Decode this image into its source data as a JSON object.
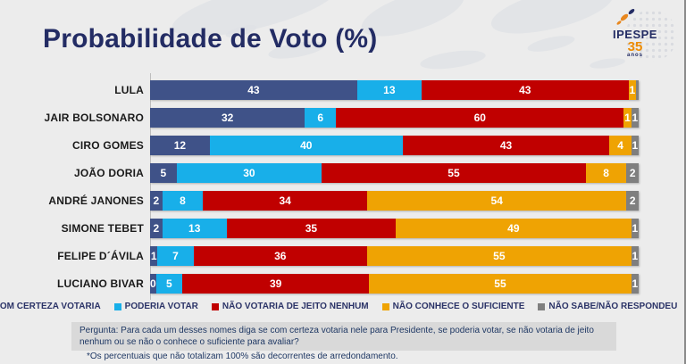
{
  "title": "Probabilidade de Voto (%)",
  "logo": {
    "name": "IPESPE",
    "years": "35",
    "anos": "anos"
  },
  "colors": {
    "background": "#ECECEC",
    "title": "#232C64",
    "com_certeza": "#3F5288",
    "poderia": "#18AFE9",
    "nao_votaria": "#C00000",
    "nao_conhece": "#EFA303",
    "nao_sabe": "#7F7F7F",
    "question_box": "#D9D9D9",
    "footer_text": "#1F3864"
  },
  "chart_data": {
    "type": "bar",
    "orientation": "horizontal",
    "stacked": true,
    "xlim": [
      0,
      100
    ],
    "title": "Probabilidade de Voto (%)",
    "categories": [
      "LULA",
      "JAIR BOLSONARO",
      "CIRO GOMES",
      "JOÃO DORIA",
      "ANDRÉ JANONES",
      "SIMONE  TEBET",
      "FELIPE D´ÁVILA",
      "LUCIANO BIVAR"
    ],
    "series": [
      {
        "name": "COM CERTEZA VOTARIA",
        "color": "#3F5288",
        "values": [
          43,
          32,
          12,
          5,
          2,
          2,
          1,
          0
        ],
        "labels": [
          "43",
          "32",
          "12",
          "5",
          "2",
          "2",
          "1",
          "0"
        ]
      },
      {
        "name": "PODERIA VOTAR",
        "color": "#18AFE9",
        "values": [
          13,
          6,
          40,
          30,
          8,
          13,
          7,
          5
        ],
        "labels": [
          "13",
          "6",
          "40",
          "30",
          "8",
          "13",
          "7",
          "5"
        ]
      },
      {
        "name": "NÃO VOTARIA DE JEITO NENHUM",
        "color": "#C00000",
        "values": [
          43,
          60,
          43,
          55,
          34,
          35,
          36,
          39
        ],
        "labels": [
          "43",
          "60",
          "43",
          "55",
          "34",
          "35",
          "36",
          "39"
        ]
      },
      {
        "name": "NÃO CONHECE O SUFICIENTE",
        "color": "#EFA303",
        "values": [
          1,
          1,
          4,
          8,
          54,
          49,
          55,
          55
        ],
        "labels": [
          "1",
          "1",
          "4",
          "8",
          "54",
          "49",
          "55",
          "55"
        ]
      },
      {
        "name": "NÃO SABE/NÃO RESPONDEU",
        "color": "#7F7F7F",
        "values": [
          0,
          1,
          1,
          2,
          2,
          1,
          1,
          1
        ],
        "labels": [
          "",
          "1",
          "1",
          "2",
          "2",
          "1",
          "1",
          "1"
        ]
      }
    ],
    "legend_position": "bottom",
    "grid": false
  },
  "footer": {
    "question": "Pergunta:  Para cada um desses nomes diga se com certeza votaria nele para Presidente, se poderia votar, se não votaria de jeito nenhum ou se não o conhece o suficiente para avaliar?",
    "note": "*Os percentuais que não totalizam 100% são decorrentes de arredondamento."
  }
}
